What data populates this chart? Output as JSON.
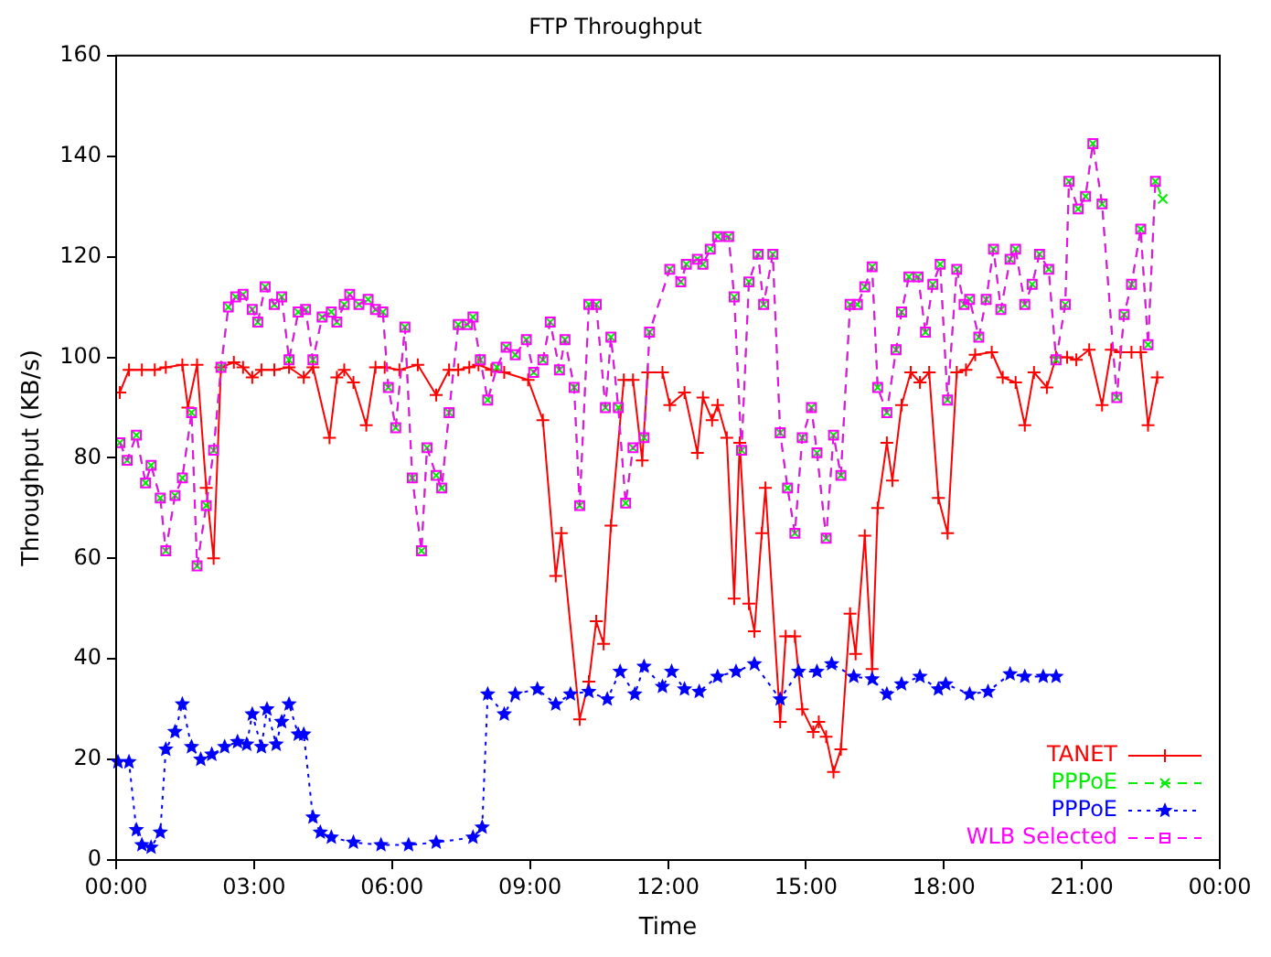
{
  "chart_data": {
    "type": "line",
    "title": "FTP Throughput",
    "xlabel": "Time",
    "ylabel": "Throughput (KB/s)",
    "xlim": [
      0,
      24
    ],
    "xticks": [
      {
        "value": 0,
        "label": "00:00"
      },
      {
        "value": 3,
        "label": "03:00"
      },
      {
        "value": 6,
        "label": "06:00"
      },
      {
        "value": 9,
        "label": "09:00"
      },
      {
        "value": 12,
        "label": "12:00"
      },
      {
        "value": 15,
        "label": "15:00"
      },
      {
        "value": 18,
        "label": "18:00"
      },
      {
        "value": 21,
        "label": "21:00"
      },
      {
        "value": 24,
        "label": "00:00"
      }
    ],
    "ylim": [
      0,
      160
    ],
    "yticks": [
      0,
      20,
      40,
      60,
      80,
      100,
      120,
      140,
      160
    ],
    "grid": false,
    "legend": "bottom right",
    "series": [
      {
        "name": "TANET",
        "color": "#ff0000",
        "marker": "cross",
        "line_style": "solid",
        "x": [
          0.08,
          0.28,
          0.56,
          0.84,
          1.08,
          1.44,
          1.56,
          1.76,
          1.96,
          2.12,
          2.28,
          2.56,
          2.76,
          2.96,
          3.16,
          3.44,
          3.76,
          4.08,
          4.28,
          4.64,
          4.8,
          4.96,
          5.16,
          5.44,
          5.64,
          5.84,
          6.16,
          6.56,
          6.96,
          7.24,
          7.44,
          7.68,
          7.88,
          8.16,
          8.44,
          8.96,
          9.28,
          9.56,
          9.68,
          10.08,
          10.28,
          10.44,
          10.6,
          10.76,
          11.04,
          11.24,
          11.44,
          11.56,
          11.88,
          12.04,
          12.36,
          12.64,
          12.76,
          12.96,
          13.08,
          13.28,
          13.44,
          13.56,
          13.76,
          13.88,
          14.04,
          14.12,
          14.44,
          14.56,
          14.76,
          14.92,
          15.16,
          15.28,
          15.44,
          15.6,
          15.76,
          15.96,
          16.08,
          16.28,
          16.44,
          16.56,
          16.76,
          16.88,
          17.08,
          17.28,
          17.48,
          17.68,
          17.88,
          18.08,
          18.28,
          18.48,
          18.68,
          19.04,
          19.28,
          19.56,
          19.76,
          19.96,
          20.24,
          20.44,
          20.68,
          20.88,
          21.16,
          21.44,
          21.64,
          21.84,
          22.08,
          22.28,
          22.44,
          22.64
        ],
        "values": [
          93,
          97.5,
          97.5,
          97.5,
          98,
          98.5,
          90,
          98.5,
          74,
          60,
          98,
          99,
          98,
          96,
          97.5,
          97.5,
          98,
          96,
          98,
          84,
          96,
          97.5,
          95,
          86.5,
          98,
          98,
          97.5,
          98.5,
          92.5,
          97.5,
          97.5,
          98,
          98.5,
          97.5,
          97,
          95.5,
          87.5,
          56.5,
          65,
          28,
          35.5,
          47.5,
          43,
          66.5,
          95.5,
          95.5,
          79.5,
          97,
          97,
          90.5,
          93,
          81,
          92,
          87.5,
          90.5,
          84,
          52,
          83,
          51,
          45.5,
          65,
          74,
          27.5,
          44.5,
          44.5,
          30,
          25.5,
          27.5,
          24.5,
          17.5,
          22,
          49,
          41,
          64.5,
          38,
          70,
          83,
          75.5,
          90.5,
          97,
          95,
          97,
          72,
          65,
          97,
          97.5,
          100.5,
          101,
          96,
          95,
          86.5,
          97,
          94,
          100,
          100,
          99.5,
          101.5,
          90.5,
          101.5,
          101,
          101,
          101,
          86.5,
          96
        ]
      },
      {
        "name": "PPPoE",
        "color": "#00ee00",
        "marker": "x",
        "line_style": "dashed",
        "x": [
          0.08,
          0.24,
          0.44,
          0.64,
          0.76,
          0.96,
          1.08,
          1.28,
          1.44,
          1.64,
          1.76,
          1.96,
          2.12,
          2.28,
          2.44,
          2.6,
          2.76,
          2.96,
          3.08,
          3.24,
          3.44,
          3.6,
          3.76,
          3.96,
          4.12,
          4.28,
          4.48,
          4.68,
          4.8,
          4.96,
          5.08,
          5.28,
          5.48,
          5.64,
          5.8,
          5.92,
          6.08,
          6.28,
          6.44,
          6.64,
          6.76,
          6.96,
          7.08,
          7.24,
          7.44,
          7.64,
          7.76,
          7.92,
          8.08,
          8.28,
          8.48,
          8.68,
          8.92,
          9.08,
          9.28,
          9.44,
          9.64,
          9.76,
          9.96,
          10.08,
          10.28,
          10.44,
          10.64,
          10.76,
          10.92,
          11.08,
          11.24,
          11.48,
          11.6,
          12.04,
          12.28,
          12.4,
          12.64,
          12.76,
          12.92,
          13.08,
          13.32,
          13.44,
          13.6,
          13.76,
          13.96,
          14.08,
          14.28,
          14.44,
          14.6,
          14.76,
          14.92,
          15.12,
          15.24,
          15.44,
          15.6,
          15.76,
          15.96,
          16.12,
          16.28,
          16.44,
          16.56,
          16.76,
          16.96,
          17.08,
          17.24,
          17.44,
          17.6,
          17.76,
          17.92,
          18.08,
          18.28,
          18.44,
          18.56,
          18.76,
          18.92,
          19.08,
          19.24,
          19.44,
          19.56,
          19.76,
          19.92,
          20.08,
          20.28,
          20.44,
          20.64,
          20.72,
          20.92,
          21.08,
          21.24,
          21.44,
          21.76,
          21.92,
          22.08,
          22.28,
          22.44,
          22.6,
          22.76
        ],
        "values": [
          83,
          79.5,
          84.5,
          75,
          78.5,
          72,
          61.5,
          72.5,
          76,
          89,
          58.5,
          70.5,
          81.5,
          98,
          110,
          112,
          112.5,
          109.5,
          107,
          114,
          110.5,
          112,
          99.5,
          109,
          109.5,
          99.5,
          108,
          109,
          107,
          110.5,
          112.5,
          110.5,
          111.5,
          109.5,
          109,
          94,
          86,
          106,
          76,
          61.5,
          82,
          76.5,
          74,
          89,
          106.5,
          106.5,
          108,
          99.5,
          91.5,
          98,
          102,
          100.5,
          103.5,
          97,
          99.5,
          107,
          97.5,
          103.5,
          94,
          70.5,
          110.5,
          110.5,
          90,
          104,
          90,
          71,
          82,
          84,
          105,
          117.5,
          115,
          118.5,
          119.5,
          118.5,
          121.5,
          124,
          124,
          112,
          81.5,
          115,
          120.5,
          110.5,
          120.5,
          85,
          74,
          65,
          84,
          90,
          81,
          64,
          84.5,
          76.5,
          110.5,
          110.5,
          114,
          118,
          94,
          89,
          101.5,
          109,
          116,
          116,
          105,
          114.5,
          118.5,
          91.5,
          117.5,
          110.5,
          111.5,
          104,
          111.5,
          121.5,
          109.5,
          119.5,
          121.5,
          110.5,
          114.5,
          120.5,
          117.5,
          99.5,
          110.5,
          135,
          129.5,
          132,
          142.5,
          130.5,
          92,
          108.5,
          114.5,
          125.5,
          102.5,
          135,
          131.5
        ]
      },
      {
        "name": "PPPoE",
        "color": "#0000ff",
        "marker": "star",
        "line_style": "dotted",
        "x": [
          0.04,
          0.28,
          0.44,
          0.56,
          0.76,
          0.96,
          1.08,
          1.28,
          1.44,
          1.64,
          1.84,
          2.08,
          2.36,
          2.64,
          2.84,
          2.96,
          3.16,
          3.28,
          3.48,
          3.6,
          3.76,
          3.96,
          4.08,
          4.28,
          4.44,
          4.68,
          5.16,
          5.76,
          6.36,
          6.96,
          7.76,
          7.96,
          8.08,
          8.44,
          8.68,
          9.16,
          9.56,
          9.88,
          10.28,
          10.68,
          10.96,
          11.28,
          11.48,
          11.88,
          12.08,
          12.36,
          12.68,
          13.08,
          13.48,
          13.88,
          14.44,
          14.84,
          15.24,
          15.56,
          16.04,
          16.44,
          16.76,
          17.08,
          17.48,
          17.88,
          18.04,
          18.56,
          18.96,
          19.44,
          19.76,
          20.16,
          20.44
        ],
        "values": [
          19.5,
          19.5,
          6,
          3,
          2.5,
          5.5,
          22,
          25.5,
          31,
          22.5,
          20,
          21,
          22.5,
          23.5,
          23,
          29,
          22.5,
          30,
          23,
          27.5,
          31,
          25,
          25,
          8.5,
          5.5,
          4.5,
          3.5,
          3,
          3,
          3.5,
          4.5,
          6.5,
          33,
          29,
          33,
          34,
          31,
          33,
          33.5,
          32,
          37.5,
          33,
          38.5,
          34.5,
          37.5,
          34,
          33.5,
          36.5,
          37.5,
          39,
          32,
          37.5,
          37.5,
          39,
          36.5,
          36,
          33,
          35,
          36.5,
          34,
          35,
          33,
          33.5,
          37,
          36.5,
          36.5,
          36.5
        ]
      },
      {
        "name": "WLB Selected",
        "color": "#ff00ff",
        "marker": "square",
        "line_style": "dashed",
        "x": [
          0.08,
          0.24,
          0.44,
          0.64,
          0.76,
          0.96,
          1.08,
          1.28,
          1.44,
          1.64,
          1.76,
          1.96,
          2.12,
          2.28,
          2.44,
          2.6,
          2.76,
          2.96,
          3.08,
          3.24,
          3.44,
          3.6,
          3.76,
          3.96,
          4.12,
          4.28,
          4.48,
          4.68,
          4.8,
          4.96,
          5.08,
          5.28,
          5.48,
          5.64,
          5.8,
          5.92,
          6.08,
          6.28,
          6.44,
          6.64,
          6.76,
          6.96,
          7.08,
          7.24,
          7.44,
          7.64,
          7.76,
          7.92,
          8.08,
          8.28,
          8.48,
          8.68,
          8.92,
          9.08,
          9.28,
          9.44,
          9.64,
          9.76,
          9.96,
          10.08,
          10.28,
          10.44,
          10.64,
          10.76,
          10.92,
          11.08,
          11.24,
          11.48,
          11.6,
          12.04,
          12.28,
          12.4,
          12.64,
          12.76,
          12.92,
          13.08,
          13.32,
          13.44,
          13.6,
          13.76,
          13.96,
          14.08,
          14.28,
          14.44,
          14.6,
          14.76,
          14.92,
          15.12,
          15.24,
          15.44,
          15.6,
          15.76,
          15.96,
          16.12,
          16.28,
          16.44,
          16.56,
          16.76,
          16.96,
          17.08,
          17.24,
          17.44,
          17.6,
          17.76,
          17.92,
          18.08,
          18.28,
          18.44,
          18.56,
          18.76,
          18.92,
          19.08,
          19.24,
          19.44,
          19.56,
          19.76,
          19.92,
          20.08,
          20.28,
          20.44,
          20.64,
          20.72,
          20.92,
          21.08,
          21.24,
          21.44,
          21.76,
          21.92,
          22.08,
          22.28,
          22.44,
          22.6
        ],
        "values": [
          83,
          79.5,
          84.5,
          75,
          78.5,
          72,
          61.5,
          72.5,
          76,
          89,
          58.5,
          70.5,
          81.5,
          98,
          110,
          112,
          112.5,
          109.5,
          107,
          114,
          110.5,
          112,
          99.5,
          109,
          109.5,
          99.5,
          108,
          109,
          107,
          110.5,
          112.5,
          110.5,
          111.5,
          109.5,
          109,
          94,
          86,
          106,
          76,
          61.5,
          82,
          76.5,
          74,
          89,
          106.5,
          106.5,
          108,
          99.5,
          91.5,
          98,
          102,
          100.5,
          103.5,
          97,
          99.5,
          107,
          97.5,
          103.5,
          94,
          70.5,
          110.5,
          110.5,
          90,
          104,
          90,
          71,
          82,
          84,
          105,
          117.5,
          115,
          118.5,
          119.5,
          118.5,
          121.5,
          124,
          124,
          112,
          81.5,
          115,
          120.5,
          110.5,
          120.5,
          85,
          74,
          65,
          84,
          90,
          81,
          64,
          84.5,
          76.5,
          110.5,
          110.5,
          114,
          118,
          94,
          89,
          101.5,
          109,
          116,
          116,
          105,
          114.5,
          118.5,
          91.5,
          117.5,
          110.5,
          111.5,
          104,
          111.5,
          121.5,
          109.5,
          119.5,
          121.5,
          110.5,
          114.5,
          120.5,
          117.5,
          99.5,
          110.5,
          135,
          129.5,
          132,
          142.5,
          130.5,
          92,
          108.5,
          114.5,
          125.5,
          102.5,
          135
        ]
      }
    ]
  }
}
